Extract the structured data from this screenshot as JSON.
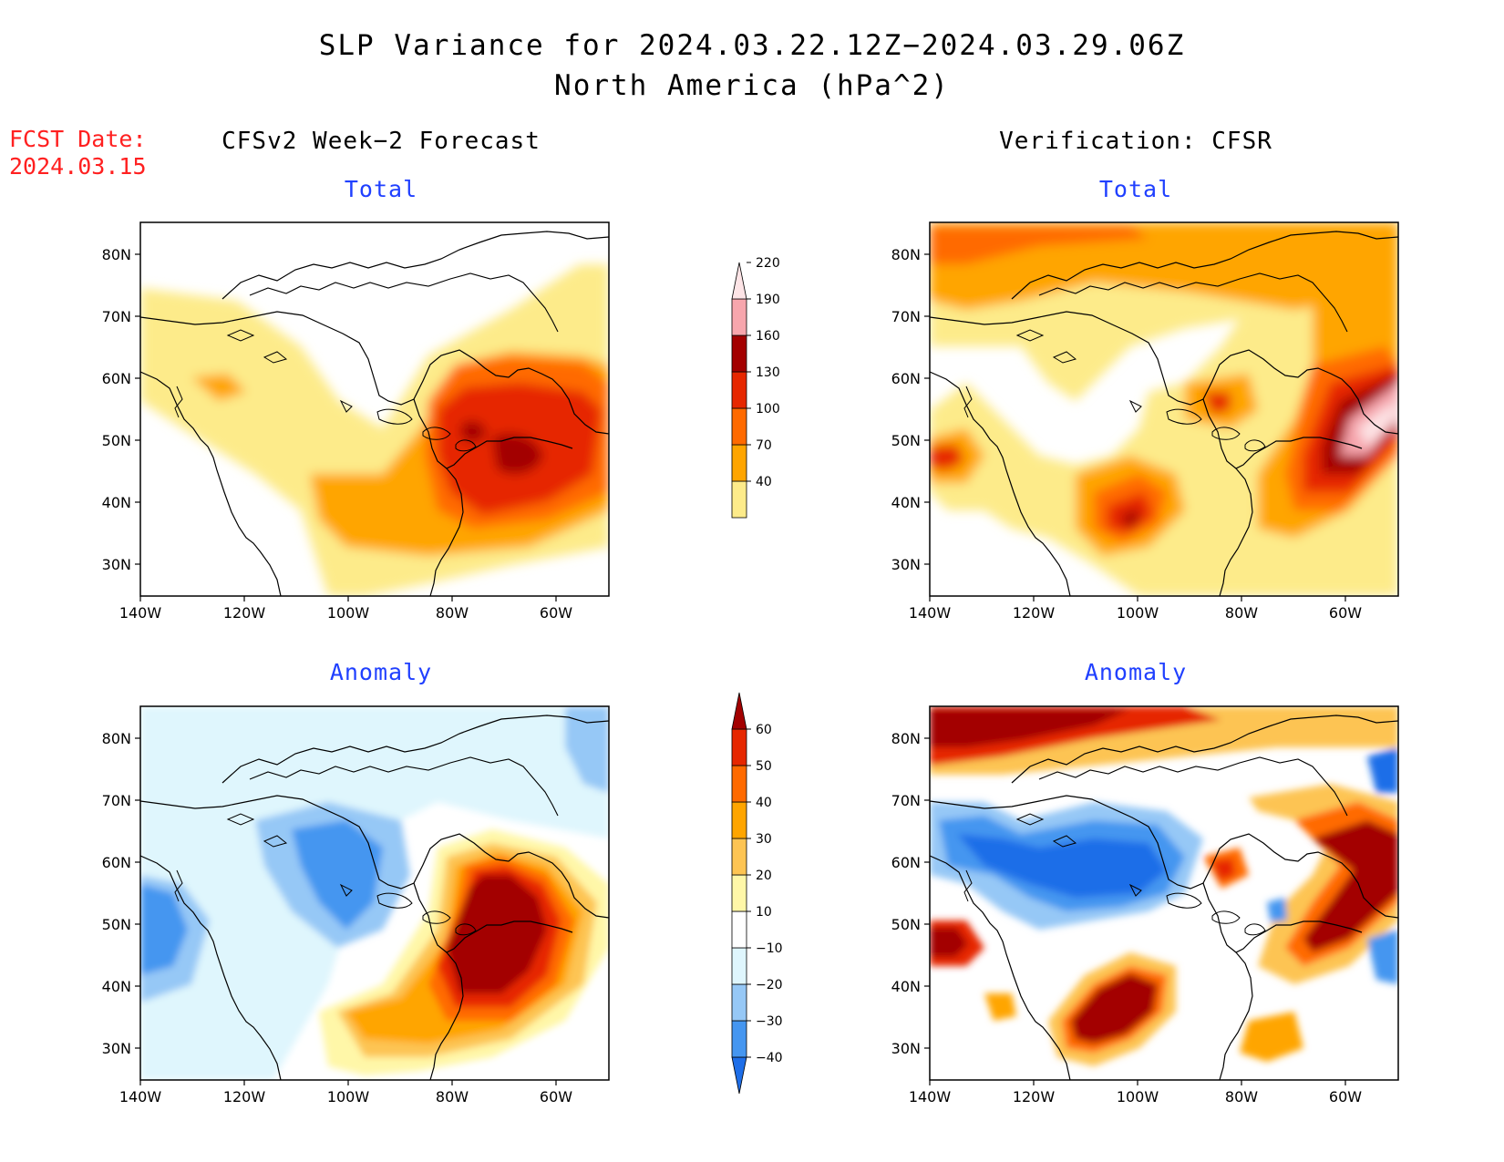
{
  "title": {
    "line1": "SLP Variance for 2024.03.22.12Z−2024.03.29.06Z",
    "line2": "North America (hPa^2)"
  },
  "forecast_date": {
    "label": "FCST Date:",
    "value": "2024.03.15"
  },
  "columns": {
    "left": "CFSv2 Week−2 Forecast",
    "right": "Verification: CFSR"
  },
  "rows": {
    "top": "Total",
    "bottom": "Anomaly"
  },
  "axes": {
    "lat_labels": [
      "80N",
      "70N",
      "60N",
      "50N",
      "40N",
      "30N"
    ],
    "lon_labels": [
      "140W",
      "120W",
      "100W",
      "80W",
      "60W"
    ]
  },
  "colorbars": {
    "total": {
      "levels": [
        "40",
        "70",
        "100",
        "130",
        "160",
        "190",
        "220"
      ],
      "colors": [
        "#fdeb8a",
        "#ffa500",
        "#ff6a00",
        "#e62700",
        "#a30000",
        "#f7a6ad",
        "#fde4e6"
      ]
    },
    "anomaly": {
      "levels": [
        "−40",
        "−30",
        "−20",
        "−10",
        "10",
        "20",
        "30",
        "40",
        "50",
        "60"
      ],
      "colors": [
        "#1e6ee8",
        "#4596f0",
        "#96c8f6",
        "#dff6fd",
        "#ffffff",
        "#fff7a8",
        "#fdc453",
        "#ffa500",
        "#ff6a00",
        "#e62700",
        "#a30000"
      ]
    }
  },
  "panels": [
    {
      "id": "forecast-total",
      "column": "left",
      "row": "top"
    },
    {
      "id": "verification-total",
      "column": "right",
      "row": "top"
    },
    {
      "id": "forecast-anomaly",
      "column": "left",
      "row": "bottom"
    },
    {
      "id": "verification-anomaly",
      "column": "right",
      "row": "bottom"
    }
  ]
}
